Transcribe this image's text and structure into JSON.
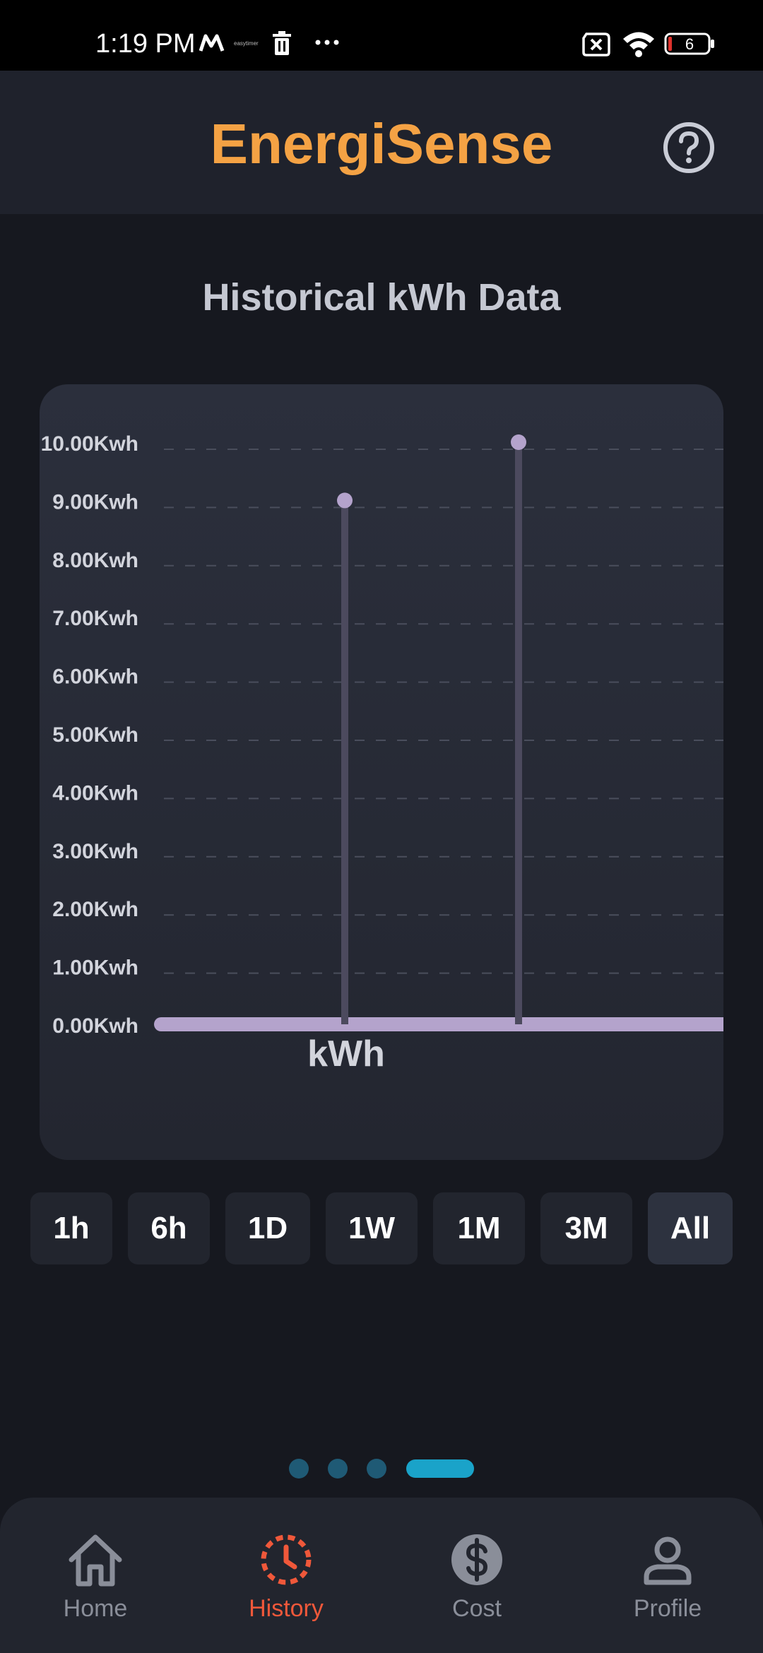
{
  "status_bar": {
    "time": "1:19 PM",
    "small_text": "easytimer",
    "battery": "6"
  },
  "header": {
    "title": "EnergiSense"
  },
  "section": {
    "title": "Historical kWh Data"
  },
  "chart_data": {
    "type": "line",
    "title": "",
    "xlabel": "kWh",
    "ylabel": "",
    "ylim": [
      0,
      10
    ],
    "y_ticks": [
      "0.00Kwh",
      "1.00Kwh",
      "2.00Kwh",
      "3.00Kwh",
      "4.00Kwh",
      "5.00Kwh",
      "6.00Kwh",
      "7.00Kwh",
      "8.00Kwh",
      "9.00Kwh",
      "10.00Kwh"
    ],
    "grid": true,
    "series": [
      {
        "values": [
          0,
          9,
          0,
          10,
          0,
          0
        ],
        "color": "#b4a3cc"
      }
    ]
  },
  "ranges": [
    {
      "label": "1h",
      "active": false
    },
    {
      "label": "6h",
      "active": false
    },
    {
      "label": "1D",
      "active": false
    },
    {
      "label": "1W",
      "active": false
    },
    {
      "label": "1M",
      "active": false
    },
    {
      "label": "3M",
      "active": false
    },
    {
      "label": "All",
      "active": true
    }
  ],
  "pager": {
    "count": 4,
    "active_index": 3
  },
  "nav": {
    "items": [
      {
        "label": "Home",
        "icon": "home-icon"
      },
      {
        "label": "History",
        "icon": "history-icon"
      },
      {
        "label": "Cost",
        "icon": "dollar-icon"
      },
      {
        "label": "Profile",
        "icon": "profile-icon"
      }
    ],
    "active_index": 1
  },
  "colors": {
    "accent": "#f4a244",
    "active_nav": "#f0583a",
    "series": "#b4a3cc",
    "pager_active": "#1aa3c9"
  }
}
